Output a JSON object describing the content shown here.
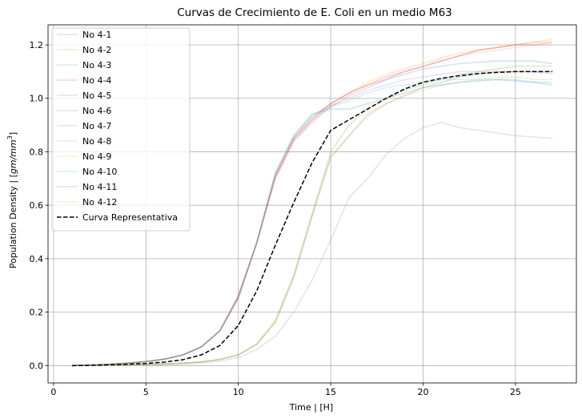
{
  "chart_data": {
    "type": "line",
    "title": "Curvas de Crecimiento de E. Coli en un medio M63",
    "xlabel": "Time | [H]",
    "ylabel_prefix": "Population Density | [",
    "ylabel_unit_main": "gm/mm",
    "ylabel_unit_exp": "3",
    "ylabel_suffix": "]",
    "xlim": [
      -0.3,
      28.3
    ],
    "ylim": [
      -0.065,
      1.275
    ],
    "xticks": [
      0,
      5,
      10,
      15,
      20,
      25
    ],
    "xtick_labels": [
      "0",
      "5",
      "10",
      "15",
      "20",
      "25"
    ],
    "yticks": [
      0.0,
      0.2,
      0.4,
      0.6,
      0.8,
      1.0,
      1.2
    ],
    "ytick_labels": [
      "0.0",
      "0.2",
      "0.4",
      "0.6",
      "0.8",
      "1.0",
      "1.2"
    ],
    "grid": true,
    "legend_position": "top-left",
    "x": [
      1,
      2,
      3,
      4,
      5,
      6,
      7,
      8,
      9,
      10,
      11,
      12,
      13,
      14,
      15,
      16,
      17,
      18,
      19,
      20,
      21,
      22,
      23,
      24,
      25,
      26,
      27
    ],
    "series": [
      {
        "name": "No 4-1",
        "color": "#1f77b4",
        "alpha": 0.2,
        "dashed": false,
        "values": [
          0.0,
          0.002,
          0.005,
          0.009,
          0.015,
          0.024,
          0.04,
          0.07,
          0.13,
          0.26,
          0.46,
          0.71,
          0.85,
          0.93,
          0.98,
          1.02,
          1.05,
          1.07,
          1.09,
          1.11,
          1.12,
          1.13,
          1.135,
          1.14,
          1.14,
          1.14,
          1.13
        ]
      },
      {
        "name": "No 4-2",
        "color": "#ff7f0e",
        "alpha": 0.2,
        "dashed": false,
        "values": [
          0.0,
          0.002,
          0.005,
          0.009,
          0.015,
          0.024,
          0.04,
          0.07,
          0.13,
          0.26,
          0.46,
          0.71,
          0.85,
          0.92,
          0.98,
          1.02,
          1.06,
          1.09,
          1.11,
          1.13,
          1.15,
          1.17,
          1.18,
          1.19,
          1.2,
          1.21,
          1.22
        ]
      },
      {
        "name": "No 4-3",
        "color": "#2ca02c",
        "alpha": 0.2,
        "dashed": false,
        "values": [
          0.0,
          0.001,
          0.002,
          0.003,
          0.004,
          0.006,
          0.009,
          0.014,
          0.023,
          0.04,
          0.08,
          0.17,
          0.34,
          0.57,
          0.8,
          0.9,
          0.96,
          1.0,
          1.03,
          1.05,
          1.07,
          1.09,
          1.1,
          1.11,
          1.12,
          1.12,
          1.12
        ]
      },
      {
        "name": "No 4-4",
        "color": "#d62728",
        "alpha": 0.2,
        "dashed": false,
        "values": [
          0.0,
          0.002,
          0.005,
          0.009,
          0.015,
          0.024,
          0.04,
          0.07,
          0.13,
          0.25,
          0.46,
          0.7,
          0.84,
          0.91,
          0.97,
          1.01,
          1.04,
          1.07,
          1.1,
          1.12,
          1.14,
          1.16,
          1.18,
          1.19,
          1.2,
          1.2,
          1.21
        ]
      },
      {
        "name": "No 4-5",
        "color": "#9467bd",
        "alpha": 0.2,
        "dashed": false,
        "values": [
          0.0,
          0.002,
          0.005,
          0.009,
          0.015,
          0.024,
          0.04,
          0.07,
          0.13,
          0.25,
          0.46,
          0.7,
          0.84,
          0.92,
          0.97,
          1.0,
          1.03,
          1.05,
          1.07,
          1.08,
          1.09,
          1.1,
          1.1,
          1.1,
          1.1,
          1.1,
          1.09
        ]
      },
      {
        "name": "No 4-6",
        "color": "#8c564b",
        "alpha": 0.2,
        "dashed": false,
        "values": [
          0.0,
          0.001,
          0.002,
          0.003,
          0.004,
          0.006,
          0.009,
          0.014,
          0.023,
          0.04,
          0.08,
          0.16,
          0.33,
          0.56,
          0.78,
          0.86,
          0.94,
          0.98,
          1.01,
          1.04,
          1.06,
          1.08,
          1.09,
          1.1,
          1.1,
          1.1,
          1.1
        ]
      },
      {
        "name": "No 4-7",
        "color": "#7f7f7f",
        "alpha": 0.2,
        "dashed": false,
        "values": [
          0.0,
          0.0,
          0.001,
          0.002,
          0.003,
          0.004,
          0.006,
          0.01,
          0.017,
          0.03,
          0.06,
          0.11,
          0.2,
          0.32,
          0.47,
          0.63,
          0.7,
          0.79,
          0.85,
          0.89,
          0.91,
          0.89,
          0.88,
          0.87,
          0.86,
          0.855,
          0.85
        ]
      },
      {
        "name": "No 4-8",
        "color": "#e377c2",
        "alpha": 0.2,
        "dashed": false,
        "values": [
          0.0,
          0.002,
          0.005,
          0.009,
          0.015,
          0.024,
          0.04,
          0.07,
          0.13,
          0.26,
          0.46,
          0.71,
          0.85,
          0.92,
          0.98,
          1.02,
          1.05,
          1.08,
          1.1,
          1.12,
          1.14,
          1.16,
          1.17,
          1.18,
          1.19,
          1.2,
          1.2
        ]
      },
      {
        "name": "No 4-9",
        "color": "#bcbd22",
        "alpha": 0.2,
        "dashed": false,
        "values": [
          0.0,
          0.001,
          0.002,
          0.003,
          0.004,
          0.006,
          0.009,
          0.014,
          0.023,
          0.04,
          0.08,
          0.16,
          0.33,
          0.56,
          0.78,
          0.86,
          0.93,
          0.98,
          1.01,
          1.03,
          1.05,
          1.06,
          1.07,
          1.08,
          1.08,
          1.07,
          1.07
        ]
      },
      {
        "name": "No 4-10",
        "color": "#17becf",
        "alpha": 0.2,
        "dashed": false,
        "values": [
          0.0,
          0.002,
          0.005,
          0.009,
          0.015,
          0.024,
          0.04,
          0.07,
          0.13,
          0.26,
          0.46,
          0.72,
          0.86,
          0.94,
          0.97,
          0.99,
          1.02,
          1.04,
          1.05,
          1.06,
          1.07,
          1.07,
          1.07,
          1.07,
          1.07,
          1.06,
          1.06
        ]
      },
      {
        "name": "No 4-11",
        "color": "#1f77b4",
        "alpha": 0.2,
        "dashed": false,
        "values": [
          0.0,
          0.002,
          0.005,
          0.009,
          0.015,
          0.024,
          0.04,
          0.07,
          0.13,
          0.26,
          0.46,
          0.72,
          0.86,
          0.94,
          0.96,
          0.96,
          0.98,
          1.0,
          1.02,
          1.04,
          1.05,
          1.06,
          1.065,
          1.07,
          1.065,
          1.06,
          1.05
        ]
      },
      {
        "name": "No 4-12",
        "color": "#ff7f0e",
        "alpha": 0.2,
        "dashed": false,
        "values": [
          0.0,
          0.002,
          0.005,
          0.009,
          0.015,
          0.024,
          0.04,
          0.07,
          0.13,
          0.26,
          0.46,
          0.71,
          0.85,
          0.93,
          0.98,
          1.02,
          1.05,
          1.08,
          1.1,
          1.12,
          1.14,
          1.16,
          1.18,
          1.19,
          1.2,
          1.21,
          1.21
        ]
      },
      {
        "name": "Curva Representativa",
        "color": "#000000",
        "alpha": 1.0,
        "dashed": true,
        "values": [
          0.0,
          0.001,
          0.003,
          0.005,
          0.008,
          0.013,
          0.022,
          0.04,
          0.075,
          0.15,
          0.28,
          0.45,
          0.61,
          0.76,
          0.88,
          0.92,
          0.96,
          1.0,
          1.035,
          1.06,
          1.075,
          1.085,
          1.093,
          1.097,
          1.1,
          1.1,
          1.1
        ]
      }
    ]
  }
}
